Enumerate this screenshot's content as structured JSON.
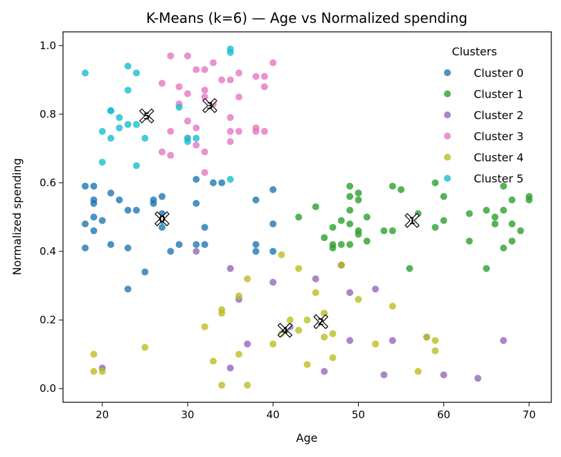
{
  "chart_data": {
    "type": "scatter",
    "title": "K-Means (k=6) — Age vs Normalized spending",
    "xlabel": "Age",
    "ylabel": "Normalized spending",
    "xlim": [
      15.4,
      72.6
    ],
    "ylim": [
      -0.04,
      1.04
    ],
    "xticks": [
      20,
      30,
      40,
      50,
      60,
      70
    ],
    "yticks": [
      0.0,
      0.2,
      0.4,
      0.6,
      0.8,
      1.0
    ],
    "ytick_labels": [
      "0.0",
      "0.2",
      "0.4",
      "0.6",
      "0.8",
      "1.0"
    ],
    "grid": false,
    "legend": {
      "title": "Clusters",
      "placement": "top-right"
    },
    "series": [
      {
        "name": "Cluster 0",
        "color": "#1f77b4",
        "points": [
          [
            18,
            0.59
          ],
          [
            19,
            0.59
          ],
          [
            19,
            0.55
          ],
          [
            19,
            0.54
          ],
          [
            18,
            0.48
          ],
          [
            19,
            0.5
          ],
          [
            20,
            0.49
          ],
          [
            19,
            0.46
          ],
          [
            18,
            0.41
          ],
          [
            21,
            0.57
          ],
          [
            22,
            0.55
          ],
          [
            21,
            0.42
          ],
          [
            23,
            0.52
          ],
          [
            24,
            0.52
          ],
          [
            23,
            0.41
          ],
          [
            23,
            0.29
          ],
          [
            25,
            0.34
          ],
          [
            26,
            0.55
          ],
          [
            26,
            0.54
          ],
          [
            27,
            0.56
          ],
          [
            27,
            0.51
          ],
          [
            27,
            0.49
          ],
          [
            27,
            0.47
          ],
          [
            28,
            0.4
          ],
          [
            29,
            0.42
          ],
          [
            31,
            0.61
          ],
          [
            31,
            0.54
          ],
          [
            31,
            0.42
          ],
          [
            32,
            0.47
          ],
          [
            32,
            0.42
          ],
          [
            33,
            0.6
          ],
          [
            34,
            0.6
          ],
          [
            38,
            0.55
          ],
          [
            38,
            0.42
          ],
          [
            38,
            0.4
          ],
          [
            40,
            0.58
          ],
          [
            40,
            0.48
          ],
          [
            40,
            0.4
          ]
        ]
      },
      {
        "name": "Cluster 1",
        "color": "#2ca02c",
        "points": [
          [
            43,
            0.5
          ],
          [
            45,
            0.53
          ],
          [
            46,
            0.44
          ],
          [
            47,
            0.47
          ],
          [
            47,
            0.42
          ],
          [
            47,
            0.41
          ],
          [
            48,
            0.49
          ],
          [
            48,
            0.42
          ],
          [
            48,
            0.36
          ],
          [
            49,
            0.59
          ],
          [
            49,
            0.56
          ],
          [
            49,
            0.52
          ],
          [
            49,
            0.48
          ],
          [
            49,
            0.42
          ],
          [
            50,
            0.57
          ],
          [
            50,
            0.55
          ],
          [
            50,
            0.46
          ],
          [
            50,
            0.45
          ],
          [
            51,
            0.5
          ],
          [
            51,
            0.43
          ],
          [
            53,
            0.46
          ],
          [
            54,
            0.59
          ],
          [
            54,
            0.46
          ],
          [
            55,
            0.58
          ],
          [
            56,
            0.35
          ],
          [
            57,
            0.51
          ],
          [
            59,
            0.6
          ],
          [
            59,
            0.47
          ],
          [
            60,
            0.56
          ],
          [
            60,
            0.49
          ],
          [
            63,
            0.51
          ],
          [
            63,
            0.43
          ],
          [
            65,
            0.52
          ],
          [
            65,
            0.35
          ],
          [
            66,
            0.5
          ],
          [
            66,
            0.48
          ],
          [
            67,
            0.59
          ],
          [
            67,
            0.52
          ],
          [
            67,
            0.41
          ],
          [
            68,
            0.55
          ],
          [
            68,
            0.48
          ],
          [
            68,
            0.43
          ],
          [
            69,
            0.46
          ],
          [
            70,
            0.56
          ],
          [
            70,
            0.55
          ]
        ]
      },
      {
        "name": "Cluster 2",
        "color": "#9467bd",
        "points": [
          [
            20,
            0.06
          ],
          [
            31,
            0.4
          ],
          [
            35,
            0.35
          ],
          [
            35,
            0.06
          ],
          [
            36,
            0.26
          ],
          [
            37,
            0.13
          ],
          [
            40,
            0.31
          ],
          [
            42,
            0.18
          ],
          [
            45,
            0.32
          ],
          [
            46,
            0.05
          ],
          [
            48,
            0.36
          ],
          [
            49,
            0.28
          ],
          [
            49,
            0.14
          ],
          [
            52,
            0.29
          ],
          [
            53,
            0.04
          ],
          [
            54,
            0.14
          ],
          [
            58,
            0.15
          ],
          [
            60,
            0.04
          ],
          [
            64,
            0.03
          ],
          [
            67,
            0.14
          ]
        ]
      },
      {
        "name": "Cluster 3",
        "color": "#e377c2",
        "points": [
          [
            27,
            0.89
          ],
          [
            27,
            0.69
          ],
          [
            28,
            0.97
          ],
          [
            28,
            0.75
          ],
          [
            28,
            0.68
          ],
          [
            29,
            0.88
          ],
          [
            29,
            0.83
          ],
          [
            30,
            0.97
          ],
          [
            30,
            0.86
          ],
          [
            30,
            0.78
          ],
          [
            30,
            0.73
          ],
          [
            31,
            0.93
          ],
          [
            31,
            0.76
          ],
          [
            31,
            0.71
          ],
          [
            32,
            0.93
          ],
          [
            32,
            0.87
          ],
          [
            32,
            0.85
          ],
          [
            32,
            0.69
          ],
          [
            32,
            0.63
          ],
          [
            33,
            0.95
          ],
          [
            33,
            0.83
          ],
          [
            34,
            0.9
          ],
          [
            35,
            0.9
          ],
          [
            35,
            0.79
          ],
          [
            35,
            0.75
          ],
          [
            35,
            0.72
          ],
          [
            36,
            0.92
          ],
          [
            36,
            0.85
          ],
          [
            36,
            0.75
          ],
          [
            38,
            0.91
          ],
          [
            38,
            0.76
          ],
          [
            38,
            0.75
          ],
          [
            39,
            0.91
          ],
          [
            39,
            0.88
          ],
          [
            39,
            0.75
          ],
          [
            40,
            0.95
          ]
        ]
      },
      {
        "name": "Cluster 4",
        "color": "#bcbd22",
        "points": [
          [
            19,
            0.1
          ],
          [
            19,
            0.05
          ],
          [
            20,
            0.05
          ],
          [
            25,
            0.12
          ],
          [
            32,
            0.18
          ],
          [
            33,
            0.08
          ],
          [
            34,
            0.23
          ],
          [
            34,
            0.22
          ],
          [
            34,
            0.01
          ],
          [
            36,
            0.27
          ],
          [
            36,
            0.1
          ],
          [
            37,
            0.32
          ],
          [
            37,
            0.01
          ],
          [
            40,
            0.13
          ],
          [
            41,
            0.39
          ],
          [
            41,
            0.16
          ],
          [
            42,
            0.2
          ],
          [
            43,
            0.35
          ],
          [
            43,
            0.17
          ],
          [
            44,
            0.2
          ],
          [
            44,
            0.07
          ],
          [
            45,
            0.28
          ],
          [
            46,
            0.22
          ],
          [
            46,
            0.15
          ],
          [
            47,
            0.16
          ],
          [
            47,
            0.09
          ],
          [
            48,
            0.36
          ],
          [
            50,
            0.26
          ],
          [
            52,
            0.13
          ],
          [
            54,
            0.24
          ],
          [
            57,
            0.05
          ],
          [
            58,
            0.15
          ],
          [
            59,
            0.14
          ],
          [
            59,
            0.11
          ]
        ]
      },
      {
        "name": "Cluster 5",
        "color": "#17becf",
        "points": [
          [
            18,
            0.92
          ],
          [
            20,
            0.75
          ],
          [
            20,
            0.66
          ],
          [
            21,
            0.81
          ],
          [
            21,
            0.81
          ],
          [
            21,
            0.73
          ],
          [
            22,
            0.79
          ],
          [
            22,
            0.76
          ],
          [
            23,
            0.94
          ],
          [
            23,
            0.87
          ],
          [
            23,
            0.77
          ],
          [
            24,
            0.92
          ],
          [
            24,
            0.77
          ],
          [
            24,
            0.65
          ],
          [
            25,
            0.73
          ],
          [
            29,
            0.82
          ],
          [
            30,
            0.73
          ],
          [
            30,
            0.72
          ],
          [
            31,
            0.73
          ],
          [
            35,
            0.99
          ],
          [
            35,
            0.98
          ],
          [
            35,
            0.61
          ]
        ]
      }
    ],
    "centroids": [
      {
        "label": "0",
        "x": 27.0,
        "y": 0.495
      },
      {
        "label": "1",
        "x": 56.3,
        "y": 0.49
      },
      {
        "label": "2",
        "x": 45.6,
        "y": 0.195
      },
      {
        "label": "3",
        "x": 32.6,
        "y": 0.825
      },
      {
        "label": "4",
        "x": 41.4,
        "y": 0.17
      },
      {
        "label": "5",
        "x": 25.2,
        "y": 0.795
      }
    ]
  }
}
